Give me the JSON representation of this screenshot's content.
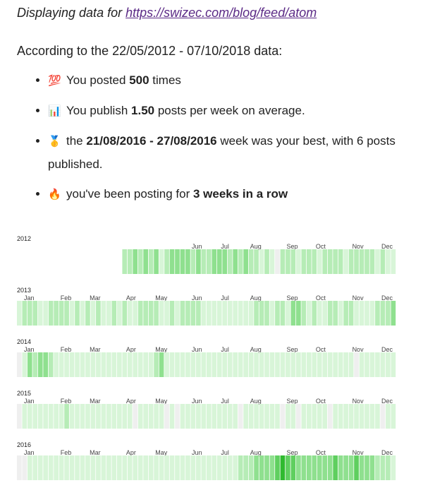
{
  "header": {
    "prefix": "Displaying data for ",
    "feed_url": "https://swizec.com/blog/feed/atom"
  },
  "range_text": "According to the 22/05/2012 - 07/10/2018 data:",
  "stats": [
    {
      "icon": "hundred-points-icon",
      "glyph": "💯",
      "pre": "You posted ",
      "bold": "500",
      "post": " times"
    },
    {
      "icon": "bar-chart-icon",
      "glyph": "📊",
      "pre": "You publish ",
      "bold": "1.50",
      "post": " posts per week on average."
    },
    {
      "icon": "medal-icon",
      "glyph": "🥇",
      "pre": "the ",
      "bold": "21/08/2016 - 27/08/2016",
      "post": " week was your best, with 6 posts published."
    },
    {
      "icon": "fire-icon",
      "glyph": "🔥",
      "pre": "you've been posting for ",
      "bold": "3 weeks in a row",
      "post": ""
    }
  ],
  "colors": {
    "empty": "#efefef",
    "levels": [
      "#efefef",
      "#d8f5d8",
      "#b6ecb6",
      "#8fe08f",
      "#5fcf5f",
      "#2fba2f"
    ],
    "link": "#5b2a86"
  },
  "chart_data": {
    "type": "heatmap",
    "months": [
      "Jan",
      "Feb",
      "Mar",
      "Apr",
      "May",
      "Jun",
      "Jul",
      "Aug",
      "Sep",
      "Oct",
      "Nov",
      "Dec"
    ],
    "years": [
      {
        "year": "2012",
        "start_week": 20,
        "weeks": [
          0,
          0,
          0,
          0,
          0,
          0,
          0,
          0,
          0,
          0,
          0,
          0,
          0,
          0,
          0,
          0,
          0,
          0,
          0,
          0,
          2,
          2,
          3,
          2,
          3,
          2,
          3,
          1,
          2,
          3,
          3,
          3,
          3,
          2,
          3,
          2,
          2,
          3,
          3,
          3,
          2,
          3,
          2,
          3,
          2,
          2,
          1,
          2,
          1,
          0,
          2,
          2,
          2,
          1,
          2,
          2,
          2,
          1,
          2,
          2,
          2,
          2,
          1,
          2,
          2,
          2,
          2,
          2,
          1,
          2,
          1,
          1
        ]
      },
      {
        "year": "2013",
        "start_week": 0,
        "weeks": [
          1,
          2,
          2,
          2,
          1,
          1,
          2,
          2,
          2,
          2,
          1,
          2,
          1,
          2,
          1,
          2,
          1,
          1,
          2,
          1,
          2,
          1,
          1,
          2,
          2,
          2,
          2,
          1,
          1,
          2,
          1,
          2,
          2,
          2,
          2,
          1,
          1,
          1,
          1,
          1,
          1,
          1,
          1,
          1,
          1,
          2,
          2,
          2,
          1,
          2,
          2,
          1,
          3,
          3,
          2,
          1,
          2,
          1,
          1,
          2,
          2,
          1,
          2,
          2,
          1,
          1,
          1,
          1,
          2,
          2,
          2,
          3
        ]
      },
      {
        "year": "2014",
        "start_week": 0,
        "weeks": [
          0,
          1,
          3,
          2,
          3,
          3,
          2,
          1,
          1,
          1,
          1,
          1,
          1,
          1,
          1,
          1,
          1,
          1,
          1,
          1,
          1,
          1,
          1,
          1,
          1,
          1,
          2,
          3,
          1,
          1,
          1,
          1,
          1,
          1,
          1,
          1,
          1,
          1,
          1,
          1,
          1,
          1,
          1,
          1,
          1,
          1,
          1,
          1,
          1,
          1,
          1,
          1,
          1,
          1,
          1,
          1,
          1,
          1,
          1,
          1,
          1,
          1,
          1,
          1,
          0,
          1,
          1,
          1,
          1,
          1,
          1,
          1
        ]
      },
      {
        "year": "2015",
        "start_week": 0,
        "weeks": [
          0,
          1,
          1,
          1,
          1,
          1,
          1,
          1,
          1,
          2,
          1,
          1,
          1,
          1,
          1,
          1,
          1,
          1,
          1,
          1,
          1,
          1,
          0,
          1,
          1,
          1,
          1,
          1,
          0,
          1,
          0,
          1,
          1,
          1,
          1,
          1,
          1,
          1,
          1,
          1,
          1,
          1,
          0,
          1,
          1,
          1,
          1,
          1,
          1,
          1,
          0,
          1,
          1,
          0,
          1,
          1,
          1,
          1,
          1,
          0,
          1,
          1,
          1,
          1,
          1,
          1,
          1,
          1,
          1,
          0,
          1,
          1
        ]
      },
      {
        "year": "2016",
        "start_week": 0,
        "weeks": [
          0,
          0,
          1,
          1,
          1,
          1,
          1,
          1,
          1,
          1,
          1,
          1,
          1,
          1,
          1,
          1,
          1,
          1,
          1,
          1,
          1,
          1,
          1,
          1,
          1,
          1,
          1,
          1,
          1,
          1,
          1,
          1,
          1,
          1,
          1,
          1,
          1,
          1,
          1,
          1,
          1,
          1,
          2,
          2,
          2,
          3,
          3,
          3,
          3,
          4,
          5,
          4,
          4,
          3,
          3,
          3,
          3,
          3,
          3,
          3,
          4,
          3,
          3,
          3,
          4,
          3,
          3,
          3,
          2,
          2,
          2,
          1
        ]
      }
    ]
  }
}
